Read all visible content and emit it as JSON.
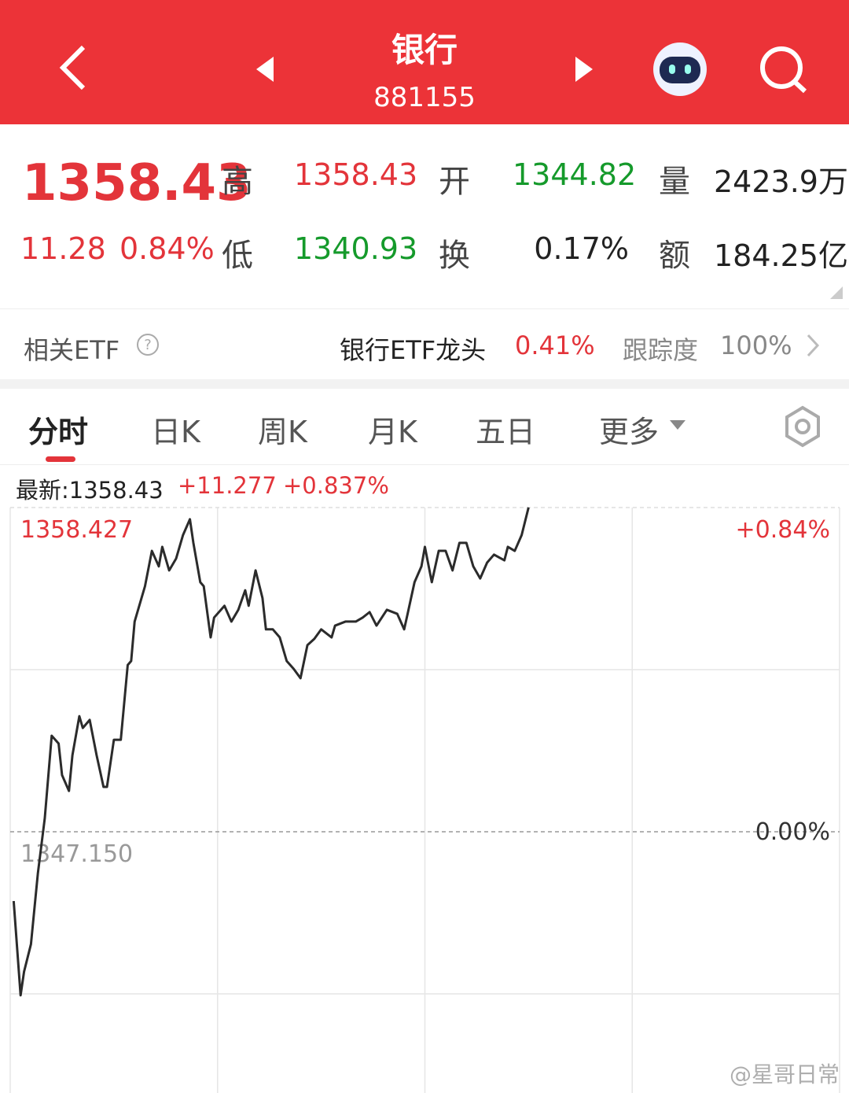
{
  "header": {
    "title": "银行",
    "code": "881155"
  },
  "quote": {
    "price": "1358.43",
    "change": "11.28",
    "change_pct": "0.84%",
    "high_label": "高",
    "high": "1358.43",
    "low_label": "低",
    "low": "1340.93",
    "open_label": "开",
    "open": "1344.82",
    "turnover_label": "换",
    "turnover": "0.17%",
    "volume_label": "量",
    "volume": "2423.9万",
    "amount_label": "额",
    "amount": "184.25亿"
  },
  "etf": {
    "label": "相关ETF",
    "name": "银行ETF龙头",
    "change": "0.41%",
    "tracking_label": "跟踪度",
    "tracking": "100%"
  },
  "tabs": [
    "分时",
    "日K",
    "周K",
    "月K",
    "五日",
    "更多"
  ],
  "info": {
    "latest": "最新:1358.43",
    "change": "+11.277",
    "change_pct": "+0.837%"
  },
  "chart": {
    "type": "line",
    "color": "#2b2b2b",
    "xlim": [
      0,
      240
    ],
    "x": [
      1,
      3,
      4,
      6,
      8,
      10,
      12,
      14,
      15,
      17,
      18,
      20,
      21,
      23,
      25,
      27,
      28,
      30,
      32,
      34,
      35,
      36,
      38,
      39,
      41,
      43,
      44,
      46,
      48,
      50,
      52,
      53,
      55,
      56,
      58,
      59,
      62,
      64,
      66,
      68,
      69,
      71,
      73,
      74,
      76,
      78,
      80,
      82,
      84,
      86,
      88,
      90,
      93,
      94,
      97,
      100,
      102,
      104,
      106,
      109,
      112,
      114,
      115,
      117,
      119,
      120,
      122,
      124,
      126,
      128,
      130,
      132,
      134,
      136,
      138,
      140,
      143,
      144,
      146,
      148,
      150
    ],
    "values": [
      1344.74,
      1341.46,
      1342.28,
      1343.24,
      1345.7,
      1347.62,
      1350.49,
      1350.22,
      1349.12,
      1348.57,
      1349.81,
      1351.17,
      1350.76,
      1351.04,
      1349.81,
      1348.71,
      1348.71,
      1350.35,
      1350.35,
      1352.95,
      1353.09,
      1354.46,
      1355.28,
      1355.69,
      1356.92,
      1356.38,
      1357.06,
      1356.24,
      1356.65,
      1357.47,
      1358.02,
      1357.2,
      1355.83,
      1355.69,
      1353.91,
      1354.6,
      1355.01,
      1354.46,
      1354.87,
      1355.55,
      1355.01,
      1356.24,
      1355.28,
      1354.19,
      1354.19,
      1353.91,
      1353.09,
      1352.82,
      1352.49,
      1353.64,
      1353.86,
      1354.19,
      1353.91,
      1354.32,
      1354.46,
      1354.46,
      1354.6,
      1354.79,
      1354.32,
      1354.87,
      1354.73,
      1354.19,
      1354.73,
      1355.83,
      1356.38,
      1357.06,
      1355.83,
      1356.92,
      1356.92,
      1356.24,
      1357.2,
      1357.2,
      1356.38,
      1355.96,
      1356.51,
      1356.79,
      1356.59,
      1357.06,
      1356.92,
      1357.47,
      1358.43
    ],
    "ylim": [
      1335.873,
      1358.427
    ],
    "yticks": [
      {
        "value": 1358.427,
        "label": "1358.427"
      },
      {
        "value": 1347.15,
        "label": "1347.150"
      }
    ],
    "y2lim": [
      -0.84,
      0.84
    ],
    "y2ticks": [
      {
        "value": 0.84,
        "label": "+0.84%"
      },
      {
        "value": 0,
        "label": "0.00%"
      }
    ]
  },
  "watermark": "@星哥日常"
}
